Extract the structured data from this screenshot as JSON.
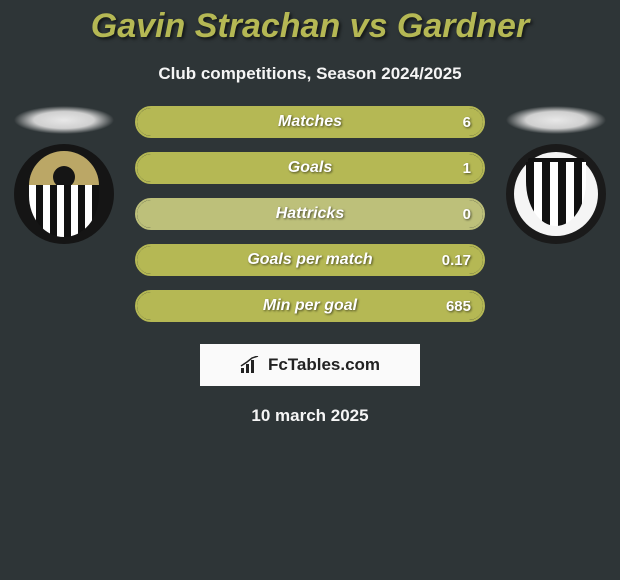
{
  "header": {
    "title": "Gavin Strachan vs Gardner",
    "title_color": "#b5b854",
    "subtitle": "Club competitions, Season 2024/2025"
  },
  "players": {
    "left": {
      "name": "Gavin Strachan"
    },
    "right": {
      "name": "Gardner"
    }
  },
  "stats": [
    {
      "label": "Matches",
      "left_val": "",
      "right_val": "6",
      "border_color": "#b5b854",
      "fill_color": "#b5b854",
      "fill_side": "right",
      "fill_pct": 100
    },
    {
      "label": "Goals",
      "left_val": "",
      "right_val": "1",
      "border_color": "#b5b854",
      "fill_color": "#b5b854",
      "fill_side": "right",
      "fill_pct": 100
    },
    {
      "label": "Hattricks",
      "left_val": "",
      "right_val": "0",
      "border_color": "#bdc07a",
      "fill_color": "#bdc07a",
      "fill_side": "right",
      "fill_pct": 100
    },
    {
      "label": "Goals per match",
      "left_val": "",
      "right_val": "0.17",
      "border_color": "#b5b854",
      "fill_color": "#b5b854",
      "fill_side": "right",
      "fill_pct": 100
    },
    {
      "label": "Min per goal",
      "left_val": "",
      "right_val": "685",
      "border_color": "#b5b854",
      "fill_color": "#b5b854",
      "fill_side": "right",
      "fill_pct": 100
    }
  ],
  "attribution": {
    "text": "FcTables.com"
  },
  "footer": {
    "date": "10 march 2025"
  },
  "colors": {
    "background": "#2e3537",
    "accent": "#b5b854",
    "text_light": "#f5f5f5"
  }
}
